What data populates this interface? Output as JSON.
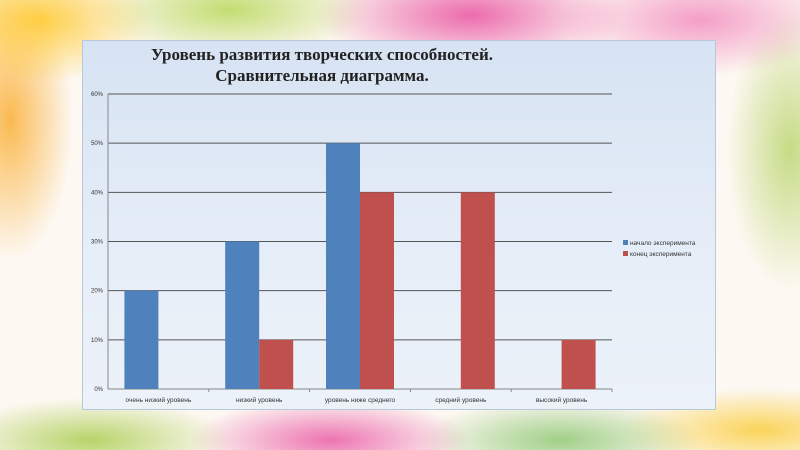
{
  "chart_data": {
    "type": "bar",
    "title": "Уровень развития творческих способностей.",
    "subtitle": "Сравнительная диаграмма.",
    "categories": [
      "очень низкий уровень",
      "низкий уровень",
      "уровень ниже среднего",
      "средний уровень",
      "высокий уровень"
    ],
    "series": [
      {
        "name": "начало эксперимента",
        "color": "#4f81bd",
        "values": [
          20,
          30,
          50,
          0,
          0
        ]
      },
      {
        "name": "конец эксперимента",
        "color": "#c0504d",
        "values": [
          0,
          10,
          40,
          40,
          10
        ]
      }
    ],
    "yticks": [
      "0%",
      "10%",
      "20%",
      "30%",
      "40%",
      "50%",
      "60%"
    ],
    "ylim": [
      0,
      60
    ],
    "grid": true,
    "legend": "right",
    "xlabel": "",
    "ylabel": ""
  }
}
